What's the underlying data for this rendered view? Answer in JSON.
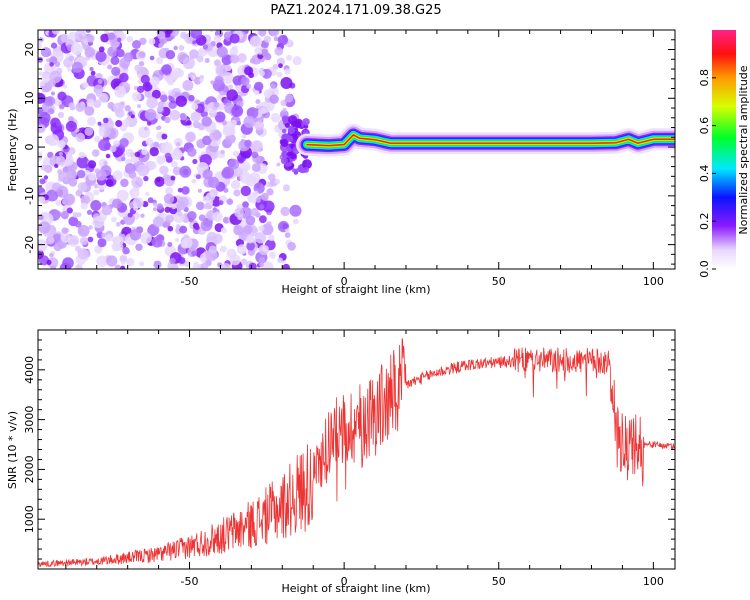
{
  "title": "PAZ1.2024.171.09.38.G25",
  "chart_data": [
    {
      "type": "heatmap",
      "name": "spectrogram",
      "xlabel": "Height of straight line (km)",
      "ylabel": "Frequency (Hz)",
      "xlim": [
        -99,
        107
      ],
      "ylim": [
        -25,
        24
      ],
      "xticks": [
        -50,
        0,
        50,
        100
      ],
      "yticks": [
        -20,
        -10,
        0,
        10,
        20
      ],
      "colorbar": {
        "label": "Normalized spectral amplitude",
        "range": [
          0,
          1
        ],
        "ticks": [
          "0.0",
          "0.2",
          "0.4",
          "0.6",
          "0.8"
        ],
        "tick_values": [
          0.0,
          0.2,
          0.4,
          0.6,
          0.8
        ]
      },
      "noise_region_x": [
        -99,
        -15
      ],
      "signal_ridge": {
        "x": [
          -12,
          -5,
          0,
          3,
          5,
          10,
          15,
          20,
          30,
          40,
          50,
          60,
          70,
          80,
          88,
          92,
          95,
          100,
          107
        ],
        "y": [
          0.5,
          0.3,
          0.5,
          2.5,
          1.8,
          1.5,
          0.8,
          0.8,
          0.8,
          0.8,
          0.8,
          0.8,
          0.8,
          0.8,
          0.9,
          1.6,
          0.8,
          1.6,
          1.6
        ]
      }
    },
    {
      "type": "line",
      "name": "snr",
      "xlabel": "Height of straight line (km)",
      "ylabel": "SNR (10 * v/v)",
      "xlim": [
        -99,
        107
      ],
      "ylim": [
        0,
        4800
      ],
      "xticks": [
        -50,
        0,
        50,
        100
      ],
      "yticks": [
        1000,
        2000,
        3000,
        4000
      ],
      "color": "#ee3333",
      "envelope": {
        "x": [
          -99,
          -80,
          -60,
          -50,
          -40,
          -30,
          -20,
          -10,
          -5,
          0,
          5,
          10,
          15,
          20,
          30,
          40,
          50,
          60,
          70,
          80,
          86,
          88,
          92,
          96,
          100,
          107
        ],
        "y": [
          100,
          150,
          300,
          450,
          650,
          900,
          1250,
          1800,
          2600,
          2800,
          2950,
          3150,
          3400,
          3700,
          3950,
          4100,
          4150,
          4200,
          4180,
          4180,
          4150,
          2600,
          2300,
          2500,
          2500,
          2450
        ]
      }
    }
  ]
}
